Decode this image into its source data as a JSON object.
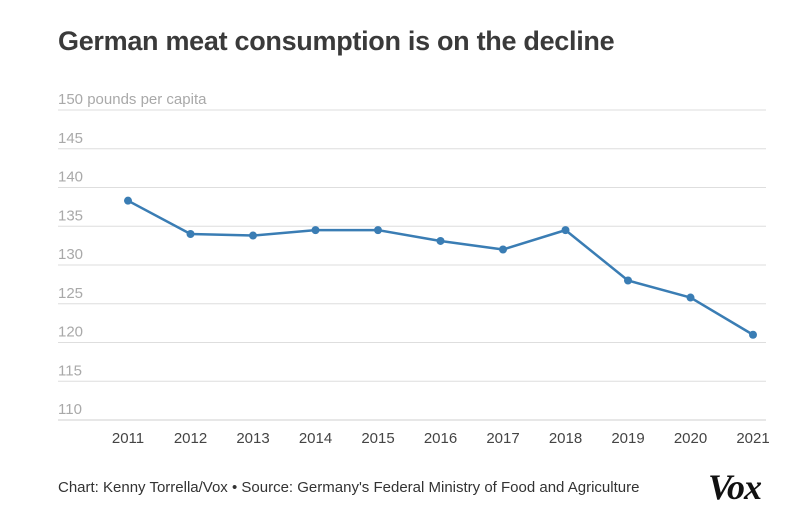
{
  "chart_data": {
    "type": "line",
    "title": "German meat consumption is on the decline",
    "ylabel": "150 pounds per capita",
    "xlabel": "",
    "x": [
      "2011",
      "2012",
      "2013",
      "2014",
      "2015",
      "2016",
      "2017",
      "2018",
      "2019",
      "2020",
      "2021"
    ],
    "values": [
      138.3,
      134.0,
      133.8,
      134.5,
      134.5,
      133.1,
      132.0,
      134.5,
      128.0,
      125.8,
      121.0
    ],
    "yticks": [
      110,
      115,
      120,
      125,
      130,
      135,
      140,
      145,
      150
    ],
    "ytick_labels": [
      "110",
      "115",
      "120",
      "125",
      "130",
      "135",
      "140",
      "145",
      "150 pounds per capita"
    ],
    "ylim": [
      108,
      150
    ],
    "grid": true,
    "line_color": "#3a7db4"
  },
  "footer": {
    "credit": "Chart: Kenny Torrella/Vox • Source: Germany's Federal Ministry of Food and Agriculture",
    "logo": "Vox"
  }
}
